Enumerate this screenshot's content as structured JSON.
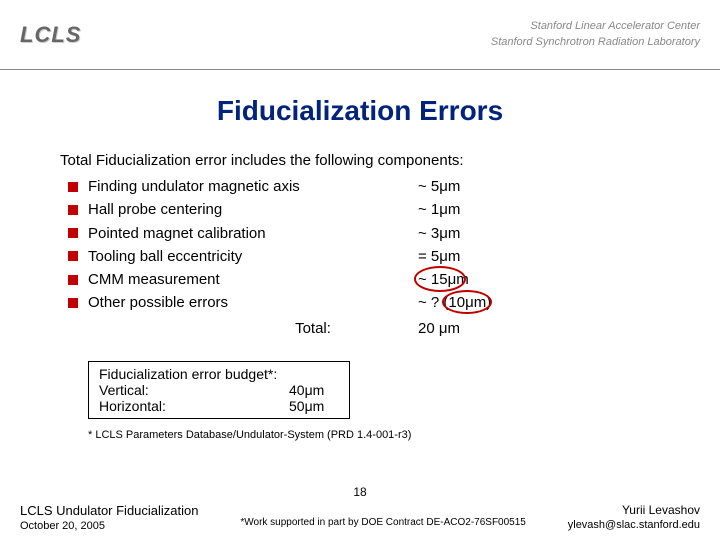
{
  "header": {
    "logo_left": "LCLS",
    "logo_right_line1": "Stanford Linear Accelerator Center",
    "logo_right_line2": "Stanford Synchrotron Radiation Laboratory"
  },
  "title": "Fiducialization Errors",
  "intro": "Total Fiducialization error includes the following components:",
  "errors": [
    {
      "label": "Finding undulator magnetic axis",
      "value": "~ 5μm"
    },
    {
      "label": "Hall probe centering",
      "value": "~ 1μm"
    },
    {
      "label": "Pointed magnet calibration",
      "value": "~ 3μm"
    },
    {
      "label": "Tooling ball eccentricity",
      "value": "= 5μm"
    },
    {
      "label": "CMM measurement",
      "value": "~ 15μm"
    },
    {
      "label": "Other possible errors",
      "value": "~ ? (10μm)"
    }
  ],
  "total": {
    "label": "Total:",
    "value": "20 μm"
  },
  "budget": {
    "title": "Fiducialization error budget*:",
    "rows": [
      {
        "label": "Vertical:",
        "value": "40μm"
      },
      {
        "label": "Horizontal:",
        "value": "50μm"
      }
    ]
  },
  "footnote1": "* LCLS Parameters Database/Undulator-System (PRD 1.4-001-r3)",
  "footer": {
    "page": "18",
    "left_title": "LCLS Undulator Fiducialization",
    "left_date": "October 20, 2005",
    "mid": "*Work supported in part by DOE Contract DE-ACO2-76SF00515",
    "right_name": "Yurii Levashov",
    "right_email": "ylevash@slac.stanford.edu"
  },
  "colors": {
    "title_color": "#00247d",
    "bullet_color": "#c00000",
    "circle_color": "#c00000",
    "text_color": "#000000",
    "header_text": "#888888"
  }
}
